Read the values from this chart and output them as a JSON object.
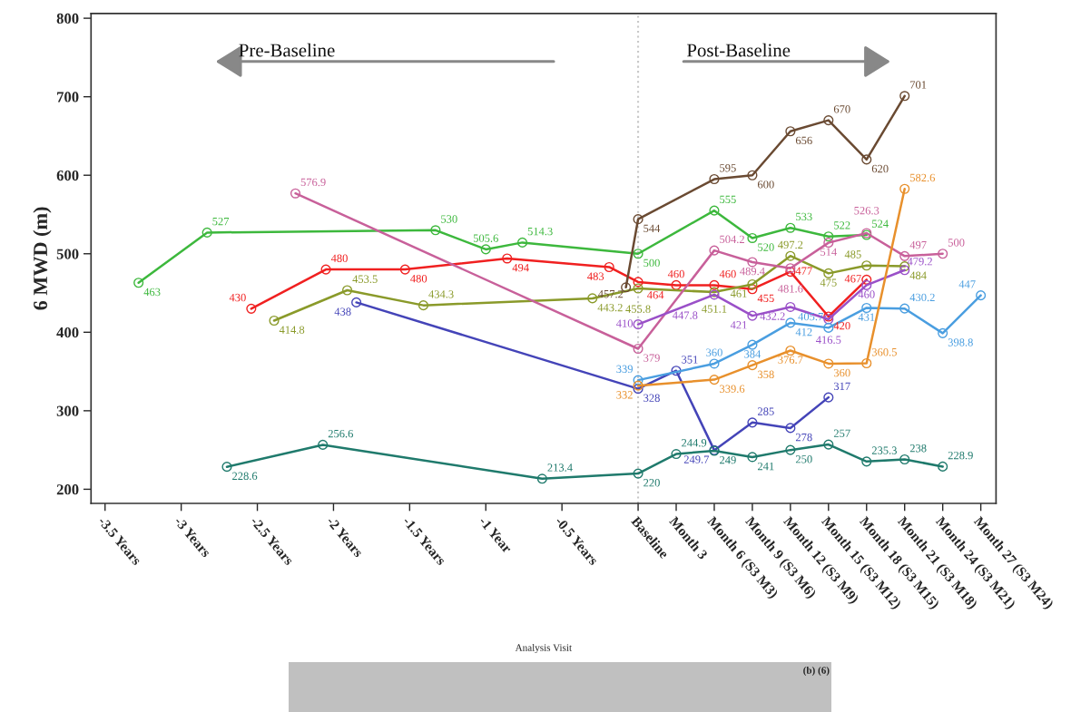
{
  "chart_data": {
    "type": "line",
    "xlabel": "Analysis Visit",
    "ylabel": "6 MWD (m)",
    "xlim": [
      -3.592,
      2.35
    ],
    "ylim": [
      182,
      806
    ],
    "xticks": [
      {
        "value": -3.5,
        "label": "-3.5 Years"
      },
      {
        "value": -3,
        "label": "-3 Years"
      },
      {
        "value": -2.5,
        "label": "-2.5 Years"
      },
      {
        "value": -2,
        "label": "-2 Years"
      },
      {
        "value": -1.5,
        "label": "-1.5 Years"
      },
      {
        "value": -1,
        "label": "-1 Year"
      },
      {
        "value": -0.5,
        "label": "-0.5 Years"
      },
      {
        "value": 0,
        "label": "Baseline"
      },
      {
        "value": 0.25,
        "label": "Month 3"
      },
      {
        "value": 0.5,
        "label": "Month 6 (S3 M3)"
      },
      {
        "value": 0.75,
        "label": "Month 9 (S3 M6)"
      },
      {
        "value": 1,
        "label": "Month 12 (S3 M9)"
      },
      {
        "value": 1.25,
        "label": "Month 15 (S3 M12)"
      },
      {
        "value": 1.5,
        "label": "Month 18 (S3 M15)"
      },
      {
        "value": 1.75,
        "label": "Month 21 (S3 M18)"
      },
      {
        "value": 2,
        "label": "Month 24 (S3 M21)"
      },
      {
        "value": 2.25,
        "label": "Month 27 (S3 M24)"
      }
    ],
    "yticks": [
      200,
      300,
      400,
      500,
      600,
      700,
      800
    ],
    "grid": false,
    "legend": false,
    "marker": "circle",
    "line_style": "solid",
    "ref_lines": [
      {
        "axis": "x",
        "value": 0,
        "color": "#c8c8c8",
        "line_style": "dotted"
      }
    ],
    "annotations": [
      "Pre-Baseline",
      "Post-Baseline",
      "(b) (6)"
    ],
    "series": [
      {
        "color": "#3db83d",
        "x": [
          -3.28,
          -2.83,
          -1.33,
          -1,
          -0.76,
          0,
          0.5,
          0.75,
          1,
          1.25,
          1.5
        ],
        "values": [
          463,
          527,
          530,
          505.6,
          514.3,
          500,
          555,
          520,
          533,
          522,
          524
        ],
        "value_labels": [
          "463",
          "527",
          "530",
          "505.6",
          "514.3",
          "500",
          "555",
          "520",
          "533",
          "522",
          "524"
        ]
      },
      {
        "color": "#f02020",
        "x": [
          -2.54,
          -2.05,
          -1.53,
          -0.86,
          -0.19,
          0,
          0.25,
          0.5,
          0.75,
          1,
          1.25,
          1.5
        ],
        "values": [
          430,
          480,
          480,
          494,
          483,
          464,
          460,
          460,
          455,
          477,
          420,
          467
        ],
        "value_labels": [
          "430",
          "480",
          "480",
          "494",
          "483",
          "464",
          "460",
          "460",
          "455",
          "477",
          "420",
          "467"
        ]
      },
      {
        "color": "#8a9a2a",
        "x": [
          -2.39,
          -1.91,
          -1.41,
          -0.3,
          0,
          0.5,
          0.75,
          1,
          1.25,
          1.5,
          1.75
        ],
        "values": [
          414.8,
          453.5,
          434.3,
          443.2,
          455.8,
          451.1,
          461,
          497.2,
          475,
          485,
          484
        ],
        "value_labels": [
          "414.8",
          "453.5",
          "434.3",
          "443.2",
          "455.8",
          "451.1",
          "461",
          "497.2",
          "475",
          "485",
          "484"
        ]
      },
      {
        "color": "#c8609a",
        "x": [
          -2.25,
          0,
          0.5,
          0.75,
          1,
          1.25,
          1.5,
          1.75,
          2
        ],
        "values": [
          576.9,
          379,
          504.2,
          489.4,
          481.6,
          514,
          526.3,
          497,
          500
        ],
        "value_labels": [
          "576.9",
          "379",
          "504.2",
          "489.4",
          "481.6",
          "514",
          "526.3",
          "497",
          "500"
        ]
      },
      {
        "color": "#4444b8",
        "x": [
          -1.85,
          0,
          0.25,
          0.5,
          0.75,
          1,
          1.25
        ],
        "values": [
          438,
          328,
          351,
          249.7,
          285,
          278,
          317
        ],
        "value_labels": [
          "438",
          "328",
          "351",
          "249.7",
          "285",
          "278",
          "317"
        ]
      },
      {
        "color": "#9a50c8",
        "x": [
          0,
          0.5,
          0.75,
          1,
          1.25,
          1.5,
          1.75
        ],
        "values": [
          410,
          447.8,
          421,
          432.2,
          416.5,
          460,
          479.2
        ],
        "value_labels": [
          "410",
          "447.8",
          "421",
          "432.2",
          "416.5",
          "460",
          "479.2"
        ]
      },
      {
        "color": "#4a9ee0",
        "x": [
          0,
          0.5,
          0.75,
          1,
          1.25,
          1.5,
          1.75,
          2,
          2.25
        ],
        "values": [
          339,
          360,
          384,
          412,
          405.7,
          431,
          430.2,
          398.8,
          447
        ],
        "value_labels": [
          "339",
          "360",
          "384",
          "412",
          "405.7",
          "431",
          "430.2",
          "398.8",
          "447"
        ]
      },
      {
        "color": "#e8902c",
        "x": [
          0,
          0.5,
          0.75,
          1,
          1.25,
          1.5,
          1.75
        ],
        "values": [
          332,
          339.6,
          358,
          376.7,
          360,
          360.5,
          582.6
        ],
        "value_labels": [
          "332",
          "339.6",
          "358",
          "376.7",
          "360",
          "360.5",
          "582.6"
        ]
      },
      {
        "color": "#6a4a32",
        "x": [
          -0.08,
          0,
          0.5,
          0.75,
          1,
          1.25,
          1.5,
          1.75
        ],
        "values": [
          457.2,
          544,
          595,
          600,
          656,
          670,
          620,
          701
        ],
        "value_labels": [
          "457.2",
          "544",
          "595",
          "600",
          "656",
          "670",
          "620",
          "701"
        ]
      },
      {
        "color": "#1f7a6c",
        "x": [
          -2.7,
          -2.07,
          -0.63,
          0,
          0.25,
          0.5,
          0.75,
          1,
          1.25,
          1.5,
          1.75,
          2
        ],
        "values": [
          228.6,
          256.6,
          213.4,
          220,
          244.9,
          249,
          241,
          250,
          257,
          235.3,
          238,
          228.9
        ],
        "value_labels": [
          "228.6",
          "256.6",
          "213.4",
          "220",
          "244.9",
          "249",
          "241",
          "250",
          "257",
          "235.3",
          "238",
          "228.9"
        ]
      }
    ]
  }
}
